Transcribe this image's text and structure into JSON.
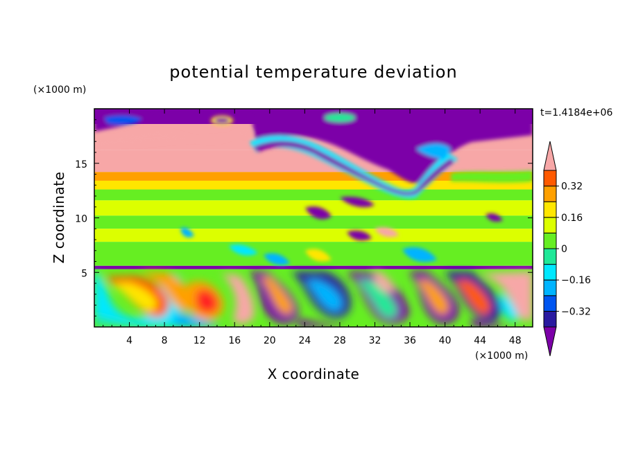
{
  "chart_data": {
    "type": "heatmap",
    "title": "potential temperature deviation",
    "xlabel": "X coordinate",
    "ylabel": "Z coordinate",
    "x_unit": "(×1000 m)",
    "y_unit": "(×1000 m)",
    "time_label": "t=1.4184e+06",
    "xlim": [
      0,
      50
    ],
    "ylim": [
      0,
      20
    ],
    "x_ticks": [
      4,
      8,
      12,
      16,
      20,
      24,
      28,
      32,
      36,
      40,
      44,
      48
    ],
    "y_ticks": [
      5,
      10,
      15
    ],
    "colorbar": {
      "levels": [
        -0.4,
        -0.32,
        -0.24,
        -0.16,
        -0.08,
        0,
        0.08,
        0.16,
        0.24,
        0.32,
        0.4
      ],
      "labels": [
        "0.32",
        "0.16",
        "0",
        "−0.16",
        "−0.32"
      ],
      "label_values": [
        0.32,
        0.16,
        0,
        -0.16,
        -0.32
      ],
      "colors": [
        "#7c00a8",
        "#2a1aa0",
        "#0055f0",
        "#00b4ff",
        "#00e8ff",
        "#20e898",
        "#66ee22",
        "#dcff00",
        "#ffe600",
        "#ffa000",
        "#ff5a00",
        "#ff2020",
        "#f7a7a7"
      ],
      "extend": "both"
    },
    "bands": [
      {
        "z": [
          18.6,
          20
        ],
        "value": -0.45
      },
      {
        "z": [
          16.2,
          18.6
        ],
        "value": 0.45
      },
      {
        "z": [
          14.2,
          16.2
        ],
        "value": 0.45
      },
      {
        "z": [
          13.4,
          14.2
        ],
        "value": 0.3
      },
      {
        "z": [
          12.6,
          13.4
        ],
        "value": 0.2
      },
      {
        "z": [
          11.6,
          12.6
        ],
        "value": 0.02
      },
      {
        "z": [
          10.2,
          11.6
        ],
        "value": 0.14
      },
      {
        "z": [
          9.0,
          10.2
        ],
        "value": 0.05
      },
      {
        "z": [
          7.8,
          9.0
        ],
        "value": 0.12
      },
      {
        "z": [
          5.6,
          7.8
        ],
        "value": 0.02
      },
      {
        "z": [
          5.3,
          5.6
        ],
        "value": -0.42
      },
      {
        "z": [
          0,
          5.3
        ],
        "value": 0.0
      }
    ]
  }
}
